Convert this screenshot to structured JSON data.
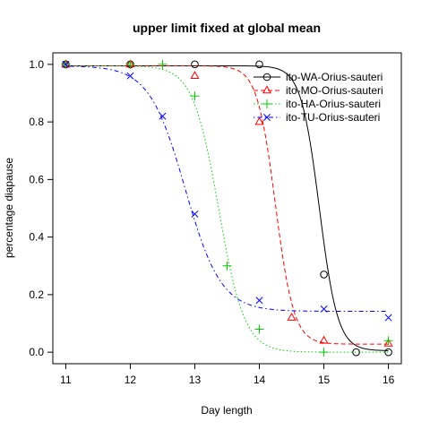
{
  "chart_data": {
    "type": "scatter",
    "title": "upper limit fixed at global mean",
    "xlabel": "Day length",
    "ylabel": "percentage diapause",
    "xlim": [
      10.8,
      16.2
    ],
    "ylim": [
      -0.04,
      1.04
    ],
    "xticks": [
      11,
      12,
      13,
      14,
      15,
      16
    ],
    "yticks": [
      0.0,
      0.2,
      0.4,
      0.6,
      0.8,
      1.0
    ],
    "ytick_labels": [
      "0.0",
      "0.2",
      "0.4",
      "0.6",
      "0.8",
      "1.0"
    ],
    "grid": false,
    "legend_position": "top-right",
    "series": [
      {
        "name": "ito-WA-Orius-sauteri",
        "color": "#000000",
        "marker": "circle",
        "line_style": "solid",
        "points": [
          [
            11,
            1.0
          ],
          [
            12,
            1.0
          ],
          [
            13,
            1.0
          ],
          [
            14,
            1.0
          ],
          [
            15,
            0.27
          ],
          [
            15.5,
            0.0
          ],
          [
            16,
            0.0
          ]
        ],
        "fit": {
          "upper": 0.995,
          "lower": 0.005,
          "midpoint": 14.93,
          "slope": 7.0
        }
      },
      {
        "name": "ito-MO-Orius-sauteri",
        "color": "#ff0000",
        "marker": "triangle",
        "line_style": "dashed",
        "points": [
          [
            11,
            1.0
          ],
          [
            12,
            1.0
          ],
          [
            13,
            0.96
          ],
          [
            14,
            0.8
          ],
          [
            14.5,
            0.12
          ],
          [
            15,
            0.04
          ],
          [
            16,
            0.03
          ]
        ],
        "fit": {
          "upper": 0.995,
          "lower": 0.028,
          "midpoint": 14.25,
          "slope": 7.0
        }
      },
      {
        "name": "ito-HA-Orius-sauteri",
        "color": "#00cd00",
        "marker": "plus",
        "line_style": "dotted",
        "points": [
          [
            11,
            1.0
          ],
          [
            12,
            1.0
          ],
          [
            12.5,
            1.0
          ],
          [
            13,
            0.89
          ],
          [
            13.5,
            0.3
          ],
          [
            14,
            0.08
          ],
          [
            15,
            0.0
          ],
          [
            16,
            0.04
          ]
        ],
        "fit": {
          "upper": 0.995,
          "lower": 0.0,
          "midpoint": 13.37,
          "slope": 5.0
        }
      },
      {
        "name": "ito-TU-Orius-sauteri",
        "color": "#0000ff",
        "marker": "cross",
        "line_style": "dotdash",
        "points": [
          [
            11,
            1.0
          ],
          [
            12,
            0.96
          ],
          [
            12.5,
            0.82
          ],
          [
            13,
            0.48
          ],
          [
            14,
            0.18
          ],
          [
            15,
            0.15
          ],
          [
            16,
            0.12
          ]
        ],
        "fit": {
          "upper": 0.995,
          "lower": 0.142,
          "midpoint": 12.85,
          "slope": 3.6
        }
      }
    ]
  }
}
